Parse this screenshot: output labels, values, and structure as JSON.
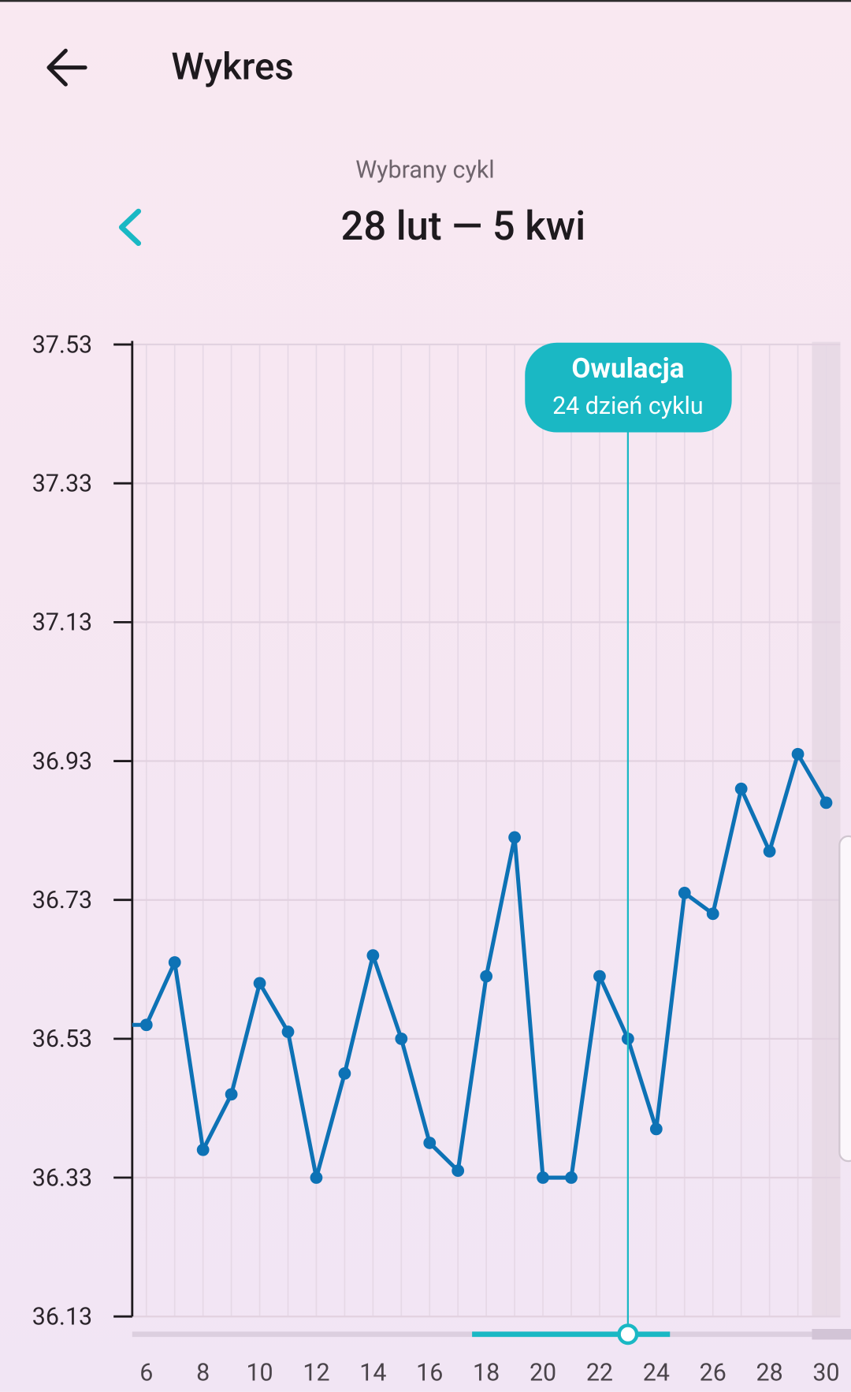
{
  "header": {
    "title": "Wykres"
  },
  "cycle": {
    "label": "Wybrany cykl",
    "range": "28 lut — 5 kwi"
  },
  "chart_data": {
    "type": "line",
    "x": [
      5,
      6,
      7,
      8,
      9,
      10,
      11,
      12,
      13,
      14,
      15,
      16,
      17,
      18,
      19,
      20,
      21,
      22,
      23,
      24,
      25,
      26,
      27,
      28,
      29,
      30
    ],
    "values": [
      36.55,
      36.55,
      36.64,
      36.37,
      36.45,
      36.61,
      36.54,
      36.33,
      36.48,
      36.65,
      36.53,
      36.38,
      36.34,
      36.62,
      36.82,
      36.33,
      36.33,
      36.62,
      36.53,
      36.4,
      36.74,
      36.71,
      36.89,
      36.8,
      36.94,
      36.87
    ],
    "color": "#0d72b5",
    "xlim": [
      5.5,
      30.5
    ],
    "ylim": [
      36.13,
      37.53
    ],
    "xticks": [
      6,
      8,
      10,
      12,
      14,
      16,
      18,
      20,
      22,
      24,
      26,
      28,
      30
    ],
    "yticks": [
      36.13,
      36.33,
      36.53,
      36.73,
      36.93,
      37.13,
      37.33,
      37.53
    ],
    "grid": true,
    "annotation": {
      "x": 23,
      "title": "Owulacja",
      "subtitle": "24 dzień cyklu",
      "color": "#1ab8c4"
    }
  }
}
